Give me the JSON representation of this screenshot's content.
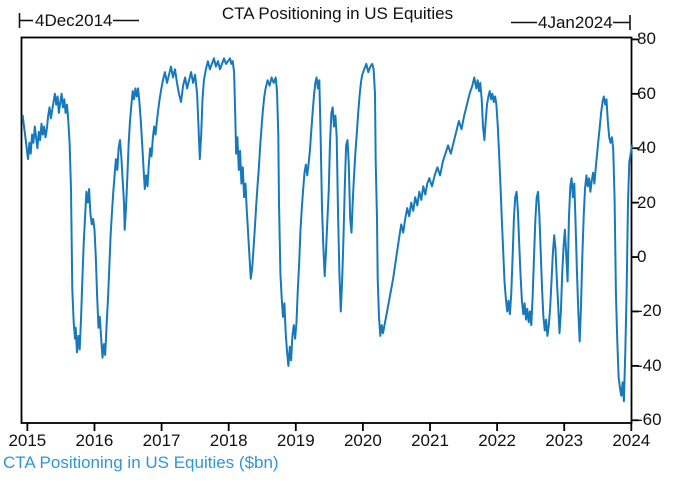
{
  "title": "CTA Positioning in US Equities",
  "annotations": {
    "start_label": "4Dec2014",
    "end_label": "4Jan2024"
  },
  "footer": {
    "legend": "CTA Positioning in US Equities ($bn)"
  },
  "colors": {
    "line": "#1779bb",
    "legend_text": "#2e96d8",
    "axis": "#000000",
    "text": "#111111"
  },
  "chart_data": {
    "type": "line",
    "title": "CTA Positioning in US Equities",
    "series_name": "CTA Positioning in US Equities ($bn)",
    "xlabel": "",
    "ylabel": "",
    "grid": false,
    "legend_position": "bottom-left",
    "x_start_label": "4Dec2014",
    "x_end_label": "4Jan2024",
    "xlim": [
      2014.92,
      2024.01
    ],
    "ylim": [
      -61,
      80.7
    ],
    "x_ticks": [
      2015,
      2016,
      2017,
      2018,
      2019,
      2020,
      2021,
      2022,
      2023,
      2024
    ],
    "y_ticks": [
      80,
      60,
      40,
      20,
      0,
      -20,
      -40,
      -60
    ],
    "points": [
      [
        2014.93,
        52
      ],
      [
        2014.95,
        48
      ],
      [
        2014.97,
        44
      ],
      [
        2014.99,
        40
      ],
      [
        2015.01,
        36
      ],
      [
        2015.03,
        42
      ],
      [
        2015.05,
        38
      ],
      [
        2015.07,
        45
      ],
      [
        2015.09,
        42
      ],
      [
        2015.11,
        48
      ],
      [
        2015.13,
        44
      ],
      [
        2015.15,
        40
      ],
      [
        2015.17,
        46
      ],
      [
        2015.19,
        43
      ],
      [
        2015.21,
        49
      ],
      [
        2015.23,
        45
      ],
      [
        2015.25,
        48
      ],
      [
        2015.27,
        44
      ],
      [
        2015.29,
        47
      ],
      [
        2015.31,
        52
      ],
      [
        2015.33,
        55
      ],
      [
        2015.35,
        51
      ],
      [
        2015.37,
        54
      ],
      [
        2015.39,
        57
      ],
      [
        2015.41,
        60
      ],
      [
        2015.43,
        56
      ],
      [
        2015.45,
        59
      ],
      [
        2015.47,
        53
      ],
      [
        2015.49,
        57
      ],
      [
        2015.51,
        60
      ],
      [
        2015.53,
        55
      ],
      [
        2015.55,
        58
      ],
      [
        2015.57,
        53
      ],
      [
        2015.59,
        56
      ],
      [
        2015.61,
        50
      ],
      [
        2015.63,
        42
      ],
      [
        2015.65,
        25
      ],
      [
        2015.66,
        5
      ],
      [
        2015.67,
        -12
      ],
      [
        2015.69,
        -24
      ],
      [
        2015.71,
        -30
      ],
      [
        2015.72,
        -26
      ],
      [
        2015.74,
        -35
      ],
      [
        2015.76,
        -29
      ],
      [
        2015.78,
        -34
      ],
      [
        2015.8,
        -22
      ],
      [
        2015.82,
        -8
      ],
      [
        2015.84,
        5
      ],
      [
        2015.86,
        15
      ],
      [
        2015.88,
        24
      ],
      [
        2015.9,
        20
      ],
      [
        2015.92,
        25
      ],
      [
        2015.94,
        16
      ],
      [
        2015.96,
        12
      ],
      [
        2015.98,
        14
      ],
      [
        2016.0,
        10
      ],
      [
        2016.02,
        0
      ],
      [
        2016.04,
        -15
      ],
      [
        2016.06,
        -26
      ],
      [
        2016.08,
        -22
      ],
      [
        2016.1,
        -30
      ],
      [
        2016.12,
        -37
      ],
      [
        2016.14,
        -32
      ],
      [
        2016.16,
        -36
      ],
      [
        2016.18,
        -25
      ],
      [
        2016.2,
        -16
      ],
      [
        2016.22,
        -5
      ],
      [
        2016.24,
        8
      ],
      [
        2016.26,
        16
      ],
      [
        2016.28,
        24
      ],
      [
        2016.3,
        30
      ],
      [
        2016.32,
        36
      ],
      [
        2016.34,
        32
      ],
      [
        2016.36,
        40
      ],
      [
        2016.38,
        43
      ],
      [
        2016.4,
        37
      ],
      [
        2016.42,
        28
      ],
      [
        2016.44,
        20
      ],
      [
        2016.45,
        10
      ],
      [
        2016.47,
        18
      ],
      [
        2016.49,
        30
      ],
      [
        2016.51,
        42
      ],
      [
        2016.53,
        50
      ],
      [
        2016.55,
        56
      ],
      [
        2016.57,
        61
      ],
      [
        2016.59,
        58
      ],
      [
        2016.61,
        62
      ],
      [
        2016.63,
        59
      ],
      [
        2016.65,
        62
      ],
      [
        2016.67,
        57
      ],
      [
        2016.69,
        50
      ],
      [
        2016.71,
        42
      ],
      [
        2016.73,
        33
      ],
      [
        2016.75,
        25
      ],
      [
        2016.77,
        30
      ],
      [
        2016.79,
        26
      ],
      [
        2016.81,
        34
      ],
      [
        2016.83,
        40
      ],
      [
        2016.85,
        37
      ],
      [
        2016.87,
        44
      ],
      [
        2016.89,
        48
      ],
      [
        2016.91,
        45
      ],
      [
        2016.93,
        50
      ],
      [
        2016.95,
        54
      ],
      [
        2016.97,
        58
      ],
      [
        2016.99,
        61
      ],
      [
        2017.02,
        65
      ],
      [
        2017.05,
        68
      ],
      [
        2017.08,
        64
      ],
      [
        2017.11,
        67
      ],
      [
        2017.14,
        70
      ],
      [
        2017.17,
        66
      ],
      [
        2017.2,
        69
      ],
      [
        2017.23,
        64
      ],
      [
        2017.26,
        60
      ],
      [
        2017.29,
        57
      ],
      [
        2017.32,
        63
      ],
      [
        2017.35,
        66
      ],
      [
        2017.38,
        62
      ],
      [
        2017.41,
        65
      ],
      [
        2017.44,
        68
      ],
      [
        2017.47,
        64
      ],
      [
        2017.5,
        67
      ],
      [
        2017.53,
        60
      ],
      [
        2017.55,
        48
      ],
      [
        2017.57,
        36
      ],
      [
        2017.59,
        45
      ],
      [
        2017.61,
        58
      ],
      [
        2017.63,
        65
      ],
      [
        2017.66,
        69
      ],
      [
        2017.69,
        72
      ],
      [
        2017.72,
        69
      ],
      [
        2017.75,
        71
      ],
      [
        2017.78,
        73
      ],
      [
        2017.81,
        70
      ],
      [
        2017.84,
        72
      ],
      [
        2017.87,
        69
      ],
      [
        2017.9,
        71
      ],
      [
        2017.93,
        73
      ],
      [
        2017.96,
        71
      ],
      [
        2017.99,
        72
      ],
      [
        2018.02,
        73
      ],
      [
        2018.04,
        71
      ],
      [
        2018.06,
        72
      ],
      [
        2018.08,
        68
      ],
      [
        2018.1,
        50
      ],
      [
        2018.11,
        38
      ],
      [
        2018.13,
        44
      ],
      [
        2018.15,
        32
      ],
      [
        2018.17,
        39
      ],
      [
        2018.19,
        27
      ],
      [
        2018.21,
        33
      ],
      [
        2018.23,
        22
      ],
      [
        2018.25,
        27
      ],
      [
        2018.27,
        17
      ],
      [
        2018.29,
        9
      ],
      [
        2018.31,
        0
      ],
      [
        2018.33,
        -8
      ],
      [
        2018.35,
        -4
      ],
      [
        2018.37,
        3
      ],
      [
        2018.39,
        11
      ],
      [
        2018.41,
        19
      ],
      [
        2018.43,
        26
      ],
      [
        2018.45,
        33
      ],
      [
        2018.47,
        41
      ],
      [
        2018.49,
        48
      ],
      [
        2018.51,
        54
      ],
      [
        2018.53,
        59
      ],
      [
        2018.55,
        62
      ],
      [
        2018.58,
        65
      ],
      [
        2018.61,
        63
      ],
      [
        2018.64,
        66
      ],
      [
        2018.67,
        64
      ],
      [
        2018.7,
        66
      ],
      [
        2018.72,
        61
      ],
      [
        2018.74,
        45
      ],
      [
        2018.75,
        20
      ],
      [
        2018.77,
        -6
      ],
      [
        2018.79,
        -15
      ],
      [
        2018.81,
        -22
      ],
      [
        2018.83,
        -17
      ],
      [
        2018.85,
        -28
      ],
      [
        2018.87,
        -35
      ],
      [
        2018.89,
        -40
      ],
      [
        2018.91,
        -33
      ],
      [
        2018.93,
        -38
      ],
      [
        2018.95,
        -29
      ],
      [
        2018.97,
        -25
      ],
      [
        2018.99,
        -30
      ],
      [
        2019.01,
        -24
      ],
      [
        2019.03,
        -12
      ],
      [
        2019.05,
        -2
      ],
      [
        2019.07,
        10
      ],
      [
        2019.09,
        18
      ],
      [
        2019.11,
        25
      ],
      [
        2019.13,
        31
      ],
      [
        2019.15,
        34
      ],
      [
        2019.17,
        30
      ],
      [
        2019.19,
        34
      ],
      [
        2019.21,
        39
      ],
      [
        2019.23,
        46
      ],
      [
        2019.25,
        53
      ],
      [
        2019.27,
        59
      ],
      [
        2019.29,
        64
      ],
      [
        2019.31,
        66
      ],
      [
        2019.33,
        62
      ],
      [
        2019.35,
        65
      ],
      [
        2019.37,
        45
      ],
      [
        2019.39,
        18
      ],
      [
        2019.41,
        4
      ],
      [
        2019.43,
        -7
      ],
      [
        2019.45,
        2
      ],
      [
        2019.47,
        13
      ],
      [
        2019.49,
        24
      ],
      [
        2019.51,
        42
      ],
      [
        2019.53,
        53
      ],
      [
        2019.55,
        55
      ],
      [
        2019.57,
        48
      ],
      [
        2019.59,
        52
      ],
      [
        2019.61,
        44
      ],
      [
        2019.63,
        15
      ],
      [
        2019.65,
        -6
      ],
      [
        2019.67,
        -20
      ],
      [
        2019.69,
        -9
      ],
      [
        2019.71,
        6
      ],
      [
        2019.73,
        26
      ],
      [
        2019.75,
        41
      ],
      [
        2019.77,
        43
      ],
      [
        2019.79,
        34
      ],
      [
        2019.81,
        14
      ],
      [
        2019.83,
        9
      ],
      [
        2019.85,
        21
      ],
      [
        2019.87,
        31
      ],
      [
        2019.89,
        39
      ],
      [
        2019.91,
        46
      ],
      [
        2019.93,
        53
      ],
      [
        2019.95,
        59
      ],
      [
        2019.97,
        64
      ],
      [
        2019.99,
        67
      ],
      [
        2020.02,
        69
      ],
      [
        2020.05,
        71
      ],
      [
        2020.08,
        68
      ],
      [
        2020.11,
        70
      ],
      [
        2020.14,
        71
      ],
      [
        2020.16,
        69
      ],
      [
        2020.18,
        60
      ],
      [
        2020.19,
        35
      ],
      [
        2020.21,
        14
      ],
      [
        2020.22,
        -8
      ],
      [
        2020.24,
        -22
      ],
      [
        2020.26,
        -29
      ],
      [
        2020.28,
        -25
      ],
      [
        2020.3,
        -28
      ],
      [
        2020.33,
        -24
      ],
      [
        2020.36,
        -20
      ],
      [
        2020.39,
        -16
      ],
      [
        2020.42,
        -12
      ],
      [
        2020.45,
        -8
      ],
      [
        2020.48,
        -3
      ],
      [
        2020.51,
        2
      ],
      [
        2020.54,
        7
      ],
      [
        2020.57,
        12
      ],
      [
        2020.6,
        9
      ],
      [
        2020.63,
        14
      ],
      [
        2020.66,
        18
      ],
      [
        2020.69,
        15
      ],
      [
        2020.72,
        20
      ],
      [
        2020.75,
        17
      ],
      [
        2020.78,
        22
      ],
      [
        2020.81,
        19
      ],
      [
        2020.84,
        24
      ],
      [
        2020.87,
        21
      ],
      [
        2020.9,
        26
      ],
      [
        2020.93,
        23
      ],
      [
        2020.96,
        27
      ],
      [
        2020.99,
        29
      ],
      [
        2021.03,
        26
      ],
      [
        2021.07,
        30
      ],
      [
        2021.11,
        33
      ],
      [
        2021.15,
        30
      ],
      [
        2021.19,
        35
      ],
      [
        2021.23,
        38
      ],
      [
        2021.27,
        41
      ],
      [
        2021.31,
        38
      ],
      [
        2021.35,
        42
      ],
      [
        2021.39,
        46
      ],
      [
        2021.43,
        50
      ],
      [
        2021.47,
        47
      ],
      [
        2021.51,
        52
      ],
      [
        2021.55,
        56
      ],
      [
        2021.59,
        60
      ],
      [
        2021.63,
        63
      ],
      [
        2021.66,
        66
      ],
      [
        2021.69,
        62
      ],
      [
        2021.71,
        65
      ],
      [
        2021.73,
        61
      ],
      [
        2021.75,
        64
      ],
      [
        2021.77,
        58
      ],
      [
        2021.79,
        48
      ],
      [
        2021.81,
        43
      ],
      [
        2021.83,
        50
      ],
      [
        2021.85,
        56
      ],
      [
        2021.87,
        59
      ],
      [
        2021.89,
        61
      ],
      [
        2021.91,
        58
      ],
      [
        2021.93,
        60
      ],
      [
        2021.95,
        57
      ],
      [
        2021.97,
        59
      ],
      [
        2021.99,
        56
      ],
      [
        2022.01,
        48
      ],
      [
        2022.03,
        38
      ],
      [
        2022.05,
        26
      ],
      [
        2022.07,
        14
      ],
      [
        2022.09,
        2
      ],
      [
        2022.11,
        -9
      ],
      [
        2022.13,
        -15
      ],
      [
        2022.15,
        -20
      ],
      [
        2022.17,
        -16
      ],
      [
        2022.19,
        -21
      ],
      [
        2022.21,
        -14
      ],
      [
        2022.23,
        0
      ],
      [
        2022.25,
        14
      ],
      [
        2022.27,
        22
      ],
      [
        2022.29,
        24
      ],
      [
        2022.31,
        17
      ],
      [
        2022.33,
        4
      ],
      [
        2022.35,
        -7
      ],
      [
        2022.37,
        -16
      ],
      [
        2022.39,
        -21
      ],
      [
        2022.41,
        -17
      ],
      [
        2022.43,
        -23
      ],
      [
        2022.45,
        -19
      ],
      [
        2022.47,
        -24
      ],
      [
        2022.49,
        -20
      ],
      [
        2022.51,
        -25
      ],
      [
        2022.53,
        -14
      ],
      [
        2022.55,
        0
      ],
      [
        2022.57,
        14
      ],
      [
        2022.59,
        22
      ],
      [
        2022.61,
        24
      ],
      [
        2022.63,
        15
      ],
      [
        2022.65,
        2
      ],
      [
        2022.67,
        -12
      ],
      [
        2022.69,
        -22
      ],
      [
        2022.71,
        -27
      ],
      [
        2022.73,
        -23
      ],
      [
        2022.75,
        -29
      ],
      [
        2022.77,
        -25
      ],
      [
        2022.79,
        -19
      ],
      [
        2022.81,
        -9
      ],
      [
        2022.83,
        1
      ],
      [
        2022.85,
        8
      ],
      [
        2022.87,
        3
      ],
      [
        2022.89,
        -8
      ],
      [
        2022.91,
        -18
      ],
      [
        2022.93,
        -28
      ],
      [
        2022.95,
        -20
      ],
      [
        2022.97,
        -6
      ],
      [
        2022.99,
        4
      ],
      [
        2023.01,
        10
      ],
      [
        2023.03,
        1
      ],
      [
        2023.05,
        -9
      ],
      [
        2023.07,
        14
      ],
      [
        2023.09,
        26
      ],
      [
        2023.11,
        29
      ],
      [
        2023.13,
        22
      ],
      [
        2023.15,
        27
      ],
      [
        2023.17,
        12
      ],
      [
        2023.19,
        -6
      ],
      [
        2023.21,
        -20
      ],
      [
        2023.23,
        -31
      ],
      [
        2023.25,
        -18
      ],
      [
        2023.27,
        0
      ],
      [
        2023.29,
        15
      ],
      [
        2023.31,
        25
      ],
      [
        2023.33,
        30
      ],
      [
        2023.35,
        26
      ],
      [
        2023.37,
        29
      ],
      [
        2023.39,
        24
      ],
      [
        2023.41,
        28
      ],
      [
        2023.43,
        31
      ],
      [
        2023.45,
        27
      ],
      [
        2023.47,
        33
      ],
      [
        2023.49,
        38
      ],
      [
        2023.51,
        43
      ],
      [
        2023.53,
        48
      ],
      [
        2023.55,
        53
      ],
      [
        2023.57,
        57
      ],
      [
        2023.59,
        59
      ],
      [
        2023.61,
        56
      ],
      [
        2023.63,
        58
      ],
      [
        2023.65,
        50
      ],
      [
        2023.67,
        44
      ],
      [
        2023.69,
        42
      ],
      [
        2023.71,
        44
      ],
      [
        2023.73,
        40
      ],
      [
        2023.75,
        21
      ],
      [
        2023.77,
        -13
      ],
      [
        2023.79,
        -30
      ],
      [
        2023.81,
        -44
      ],
      [
        2023.83,
        -48
      ],
      [
        2023.85,
        -51
      ],
      [
        2023.87,
        -46
      ],
      [
        2023.89,
        -53
      ],
      [
        2023.91,
        -35
      ],
      [
        2023.93,
        -13
      ],
      [
        2023.95,
        20
      ],
      [
        2023.97,
        35
      ],
      [
        2023.99,
        38
      ],
      [
        2024.01,
        41
      ]
    ]
  }
}
